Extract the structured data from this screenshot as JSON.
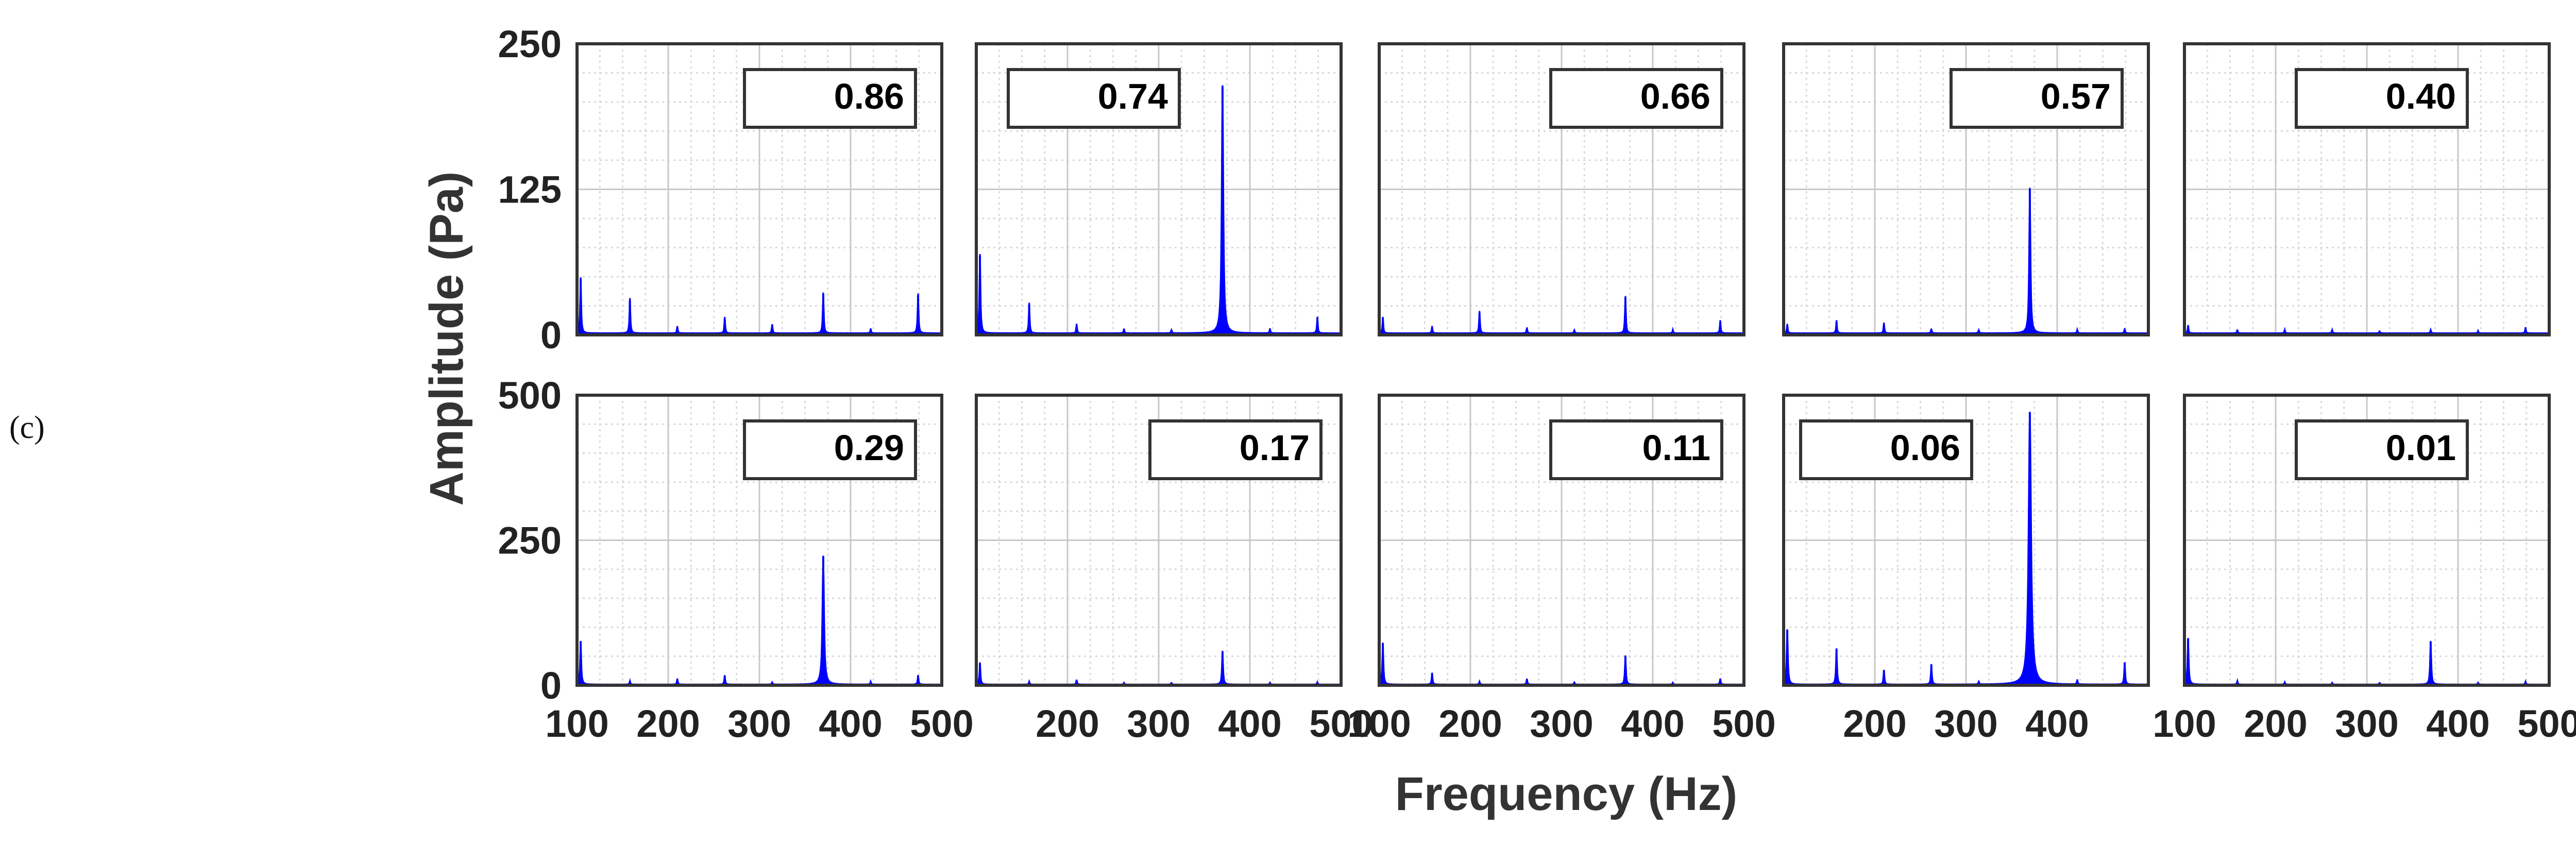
{
  "figure": {
    "panel_letter": "(c)",
    "xlabel": "Frequency (Hz)",
    "ylabel": "Amplitude (Pa)"
  },
  "chart_data": [
    {
      "type": "line",
      "row": 0,
      "col": 0,
      "annotation": "0.86",
      "xlim": [
        100,
        500
      ],
      "ylim": [
        0,
        250
      ],
      "yticks": [
        0,
        125,
        250
      ],
      "xticks": [],
      "series": [
        {
          "peaks": [
            [
              104,
              48
            ],
            [
              158,
              30
            ],
            [
              210,
              6
            ],
            [
              262,
              14
            ],
            [
              314,
              8
            ],
            [
              370,
              35
            ],
            [
              422,
              4
            ],
            [
              474,
              34
            ]
          ]
        }
      ]
    },
    {
      "type": "line",
      "row": 0,
      "col": 1,
      "annotation": "0.74",
      "xlim": [
        100,
        500
      ],
      "ylim": [
        0,
        250
      ],
      "yticks": [],
      "xticks": [],
      "series": [
        {
          "peaks": [
            [
              104,
              68
            ],
            [
              158,
              26
            ],
            [
              210,
              8
            ],
            [
              262,
              4
            ],
            [
              314,
              3
            ],
            [
              370,
              213
            ],
            [
              422,
              4
            ],
            [
              474,
              14
            ]
          ]
        }
      ]
    },
    {
      "type": "line",
      "row": 0,
      "col": 2,
      "annotation": "0.66",
      "xlim": [
        100,
        500
      ],
      "ylim": [
        0,
        250
      ],
      "yticks": [],
      "xticks": [],
      "series": [
        {
          "peaks": [
            [
              104,
              14
            ],
            [
              158,
              6
            ],
            [
              210,
              19
            ],
            [
              262,
              5
            ],
            [
              314,
              3
            ],
            [
              370,
              32
            ],
            [
              422,
              3
            ],
            [
              474,
              11
            ]
          ]
        }
      ]
    },
    {
      "type": "line",
      "row": 0,
      "col": 3,
      "annotation": "0.57",
      "xlim": [
        100,
        500
      ],
      "ylim": [
        0,
        250
      ],
      "yticks": [],
      "xticks": [],
      "series": [
        {
          "peaks": [
            [
              104,
              8
            ],
            [
              158,
              11
            ],
            [
              210,
              9
            ],
            [
              262,
              4
            ],
            [
              314,
              3
            ],
            [
              370,
              125
            ],
            [
              422,
              3
            ],
            [
              474,
              4
            ]
          ]
        }
      ]
    },
    {
      "type": "line",
      "row": 0,
      "col": 4,
      "annotation": "0.40",
      "xlim": [
        100,
        500
      ],
      "ylim": [
        0,
        250
      ],
      "yticks": [],
      "xticks": [],
      "series": [
        {
          "peaks": [
            [
              104,
              7
            ],
            [
              158,
              3
            ],
            [
              210,
              3
            ],
            [
              262,
              3
            ],
            [
              314,
              2
            ],
            [
              370,
              3
            ],
            [
              422,
              2
            ],
            [
              474,
              5
            ]
          ]
        }
      ]
    },
    {
      "type": "line",
      "row": 1,
      "col": 0,
      "annotation": "0.29",
      "xlim": [
        100,
        500
      ],
      "ylim": [
        0,
        500
      ],
      "yticks": [
        0,
        250,
        500
      ],
      "xticks": [
        100,
        200,
        300,
        400,
        500
      ],
      "series": [
        {
          "peaks": [
            [
              104,
              75
            ],
            [
              158,
              6
            ],
            [
              210,
              10
            ],
            [
              262,
              16
            ],
            [
              314,
              4
            ],
            [
              370,
              222
            ],
            [
              422,
              5
            ],
            [
              474,
              16
            ]
          ]
        }
      ]
    },
    {
      "type": "line",
      "row": 1,
      "col": 1,
      "annotation": "0.17",
      "xlim": [
        100,
        500
      ],
      "ylim": [
        0,
        500
      ],
      "yticks": [],
      "xticks": [
        200,
        300,
        400,
        500
      ],
      "series": [
        {
          "peaks": [
            [
              104,
              38
            ],
            [
              158,
              5
            ],
            [
              210,
              8
            ],
            [
              262,
              3
            ],
            [
              314,
              3
            ],
            [
              370,
              58
            ],
            [
              422,
              3
            ],
            [
              474,
              4
            ]
          ]
        }
      ]
    },
    {
      "type": "line",
      "row": 1,
      "col": 2,
      "annotation": "0.11",
      "xlim": [
        100,
        500
      ],
      "ylim": [
        0,
        500
      ],
      "yticks": [],
      "xticks": [
        100,
        200,
        300,
        400,
        500
      ],
      "series": [
        {
          "peaks": [
            [
              104,
              72
            ],
            [
              158,
              20
            ],
            [
              210,
              5
            ],
            [
              262,
              10
            ],
            [
              314,
              4
            ],
            [
              370,
              50
            ],
            [
              422,
              3
            ],
            [
              474,
              10
            ]
          ]
        }
      ]
    },
    {
      "type": "line",
      "row": 1,
      "col": 3,
      "annotation": "0.06",
      "xlim": [
        100,
        500
      ],
      "ylim": [
        0,
        500
      ],
      "yticks": [],
      "xticks": [
        200,
        300,
        400
      ],
      "series": [
        {
          "peaks": [
            [
              104,
              95
            ],
            [
              158,
              62
            ],
            [
              210,
              25
            ],
            [
              262,
              35
            ],
            [
              314,
              5
            ],
            [
              370,
              470
            ],
            [
              422,
              8
            ],
            [
              474,
              38
            ]
          ]
        }
      ]
    },
    {
      "type": "line",
      "row": 1,
      "col": 4,
      "annotation": "0.01",
      "xlim": [
        100,
        500
      ],
      "ylim": [
        0,
        500
      ],
      "yticks": [],
      "xticks": [
        100,
        200,
        300,
        400,
        500
      ],
      "series": [
        {
          "peaks": [
            [
              104,
              80
            ],
            [
              158,
              6
            ],
            [
              210,
              4
            ],
            [
              262,
              3
            ],
            [
              314,
              3
            ],
            [
              370,
              75
            ],
            [
              422,
              3
            ],
            [
              474,
              5
            ]
          ]
        }
      ]
    }
  ],
  "style": {
    "line_color": "#0000ff",
    "axes_color": "#333333",
    "grid_color": "#d9d9d9"
  }
}
